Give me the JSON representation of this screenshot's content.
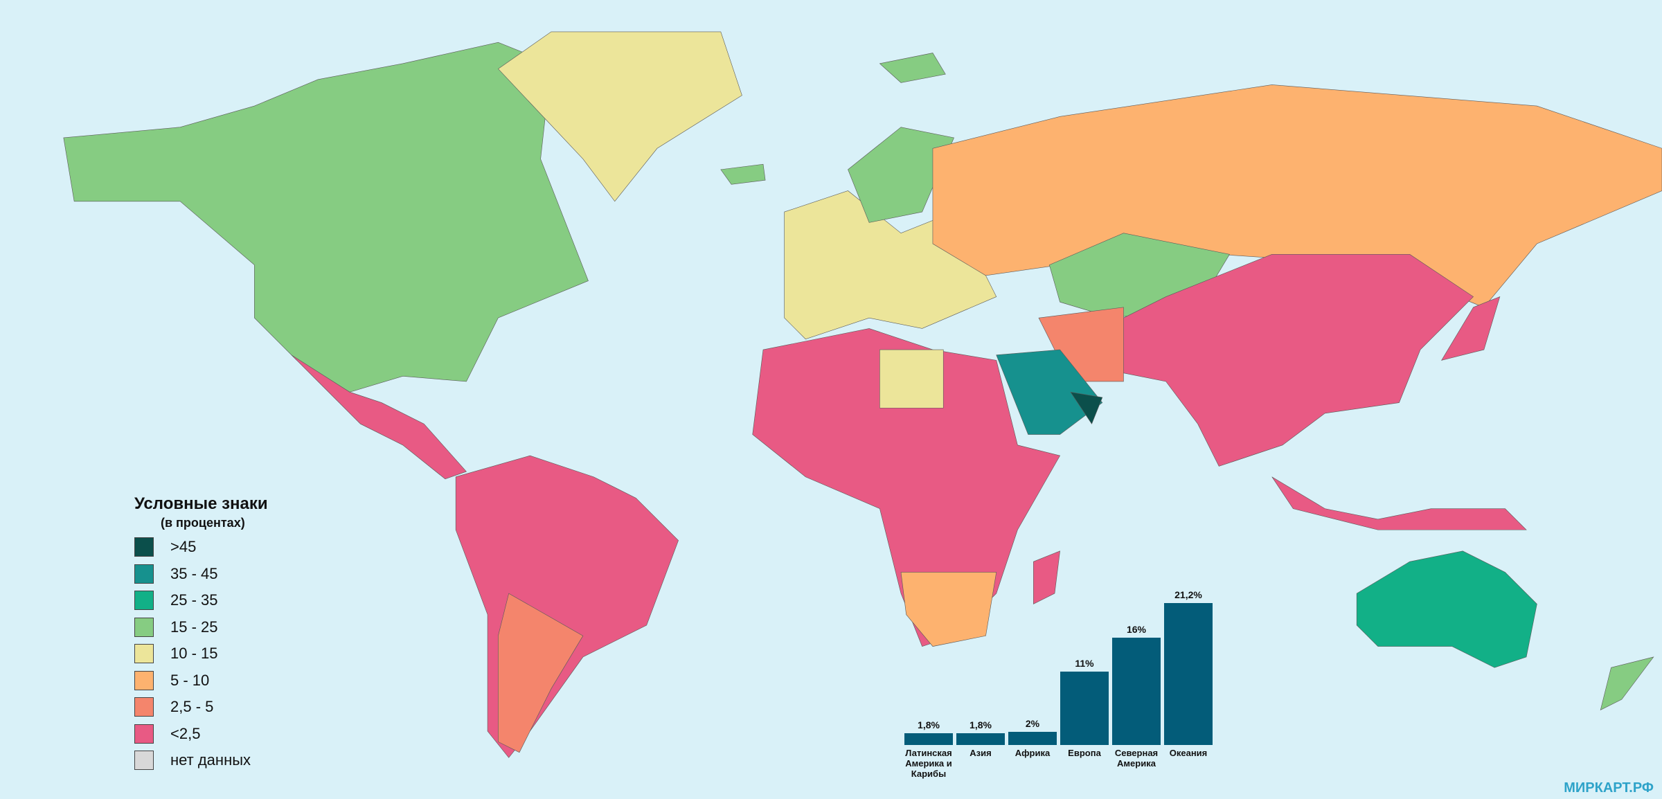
{
  "legend": {
    "title": "Условные знаки",
    "subtitle": "(в процентах)",
    "items": [
      {
        "label": ">45",
        "color": "#0b4f4b"
      },
      {
        "label": "35 - 45",
        "color": "#16918e"
      },
      {
        "label": "25 - 35",
        "color": "#12b087"
      },
      {
        "label": "15 - 25",
        "color": "#86cc82"
      },
      {
        "label": "10 - 15",
        "color": "#ece59a"
      },
      {
        "label": "5 - 10",
        "color": "#fdb26f"
      },
      {
        "label": "2,5 - 5",
        "color": "#f4856c"
      },
      {
        "label": "<2,5",
        "color": "#e85a84"
      },
      {
        "label": "нет данных",
        "color": "#d8d8d8"
      }
    ]
  },
  "chart_data": {
    "type": "bar",
    "categories": [
      "Латинская Америка и Карибы",
      "Азия",
      "Африка",
      "Европа",
      "Северная Америка",
      "Океания"
    ],
    "values": [
      1.8,
      1.8,
      2,
      11,
      16,
      21.2
    ],
    "value_labels": [
      "1,8%",
      "1,8%",
      "2%",
      "11%",
      "16%",
      "21,2%"
    ],
    "color": "#035c79"
  },
  "watermark": "МИРКАРТ.РФ"
}
